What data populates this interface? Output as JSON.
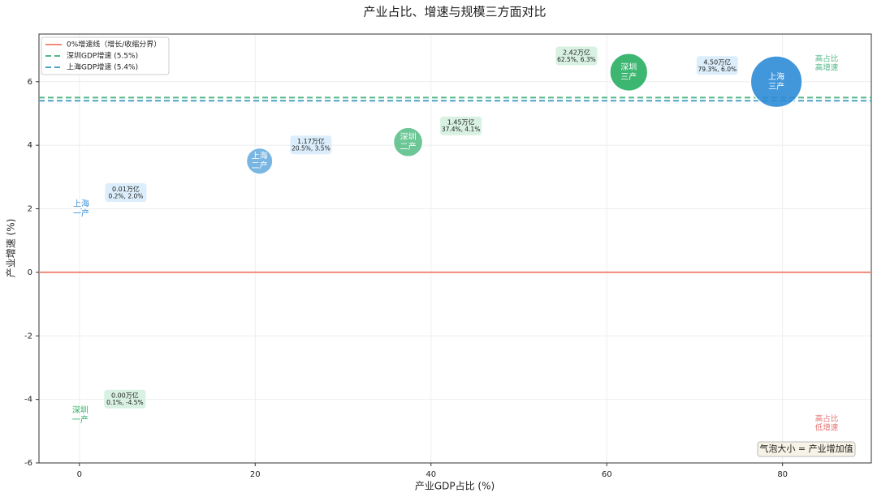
{
  "chart_data": {
    "type": "bubble",
    "title": "产业占比、增速与规模三方面对比",
    "x_label": "产业GDP占比 (%)",
    "y_label": "产业增速 (%)",
    "xlim": [
      -4.6,
      90.1
    ],
    "xticks": [
      0,
      20,
      40,
      60,
      80
    ],
    "ylim": [
      -6,
      7.5
    ],
    "yticks": [
      -6,
      -4,
      -2,
      0,
      2,
      4,
      6
    ],
    "grid": true,
    "legend_corner": "upper-left",
    "hlines": [
      {
        "name": "0%增速线（增长/收缩分界）",
        "y": 0,
        "color": "#f08a78",
        "dashed": false
      },
      {
        "name": "深圳GDP增速 (5.5%)",
        "y": 5.5,
        "color": "#52b788",
        "dashed": true
      },
      {
        "name": "上海GDP增速 (5.4%)",
        "y": 5.4,
        "color": "#4aa3c8",
        "dashed": true
      }
    ],
    "points": [
      {
        "region": "上海",
        "sector": "一产",
        "x": 0.2,
        "y": 2.0,
        "size": 0.01,
        "size_label": "0.01万亿",
        "coord_label": "0.2%, 2.0%",
        "color": "#3a8fd6"
      },
      {
        "region": "上海",
        "sector": "二产",
        "x": 20.5,
        "y": 3.5,
        "size": 1.17,
        "size_label": "1.17万亿",
        "coord_label": "20.5%, 3.5%",
        "color": "#6aaee0"
      },
      {
        "region": "上海",
        "sector": "三产",
        "x": 79.3,
        "y": 6.0,
        "size": 4.5,
        "size_label": "4.50万亿",
        "coord_label": "79.3%, 6.0%",
        "color": "#2e8bd6"
      },
      {
        "region": "深圳",
        "sector": "一产",
        "x": 0.1,
        "y": -4.5,
        "size": 0.0,
        "size_label": "0.00万亿",
        "coord_label": "0.1%, -4.5%",
        "color": "#27ae60"
      },
      {
        "region": "深圳",
        "sector": "二产",
        "x": 37.4,
        "y": 4.1,
        "size": 1.45,
        "size_label": "1.45万亿",
        "coord_label": "37.4%, 4.1%",
        "color": "#5cc08a"
      },
      {
        "region": "深圳",
        "sector": "三产",
        "x": 62.5,
        "y": 6.3,
        "size": 2.42,
        "size_label": "2.42万亿",
        "coord_label": "62.5%, 6.3%",
        "color": "#27ae60"
      }
    ],
    "annotations": [
      {
        "lines": [
          "高占比",
          "高增速"
        ],
        "corner": "top-right",
        "color": "#52b788"
      },
      {
        "lines": [
          "高占比",
          "低增速"
        ],
        "corner": "bottom-right",
        "color": "#e57373"
      }
    ],
    "note": {
      "text": "气泡大小 = 产业增加值",
      "corner": "bottom-right"
    }
  }
}
